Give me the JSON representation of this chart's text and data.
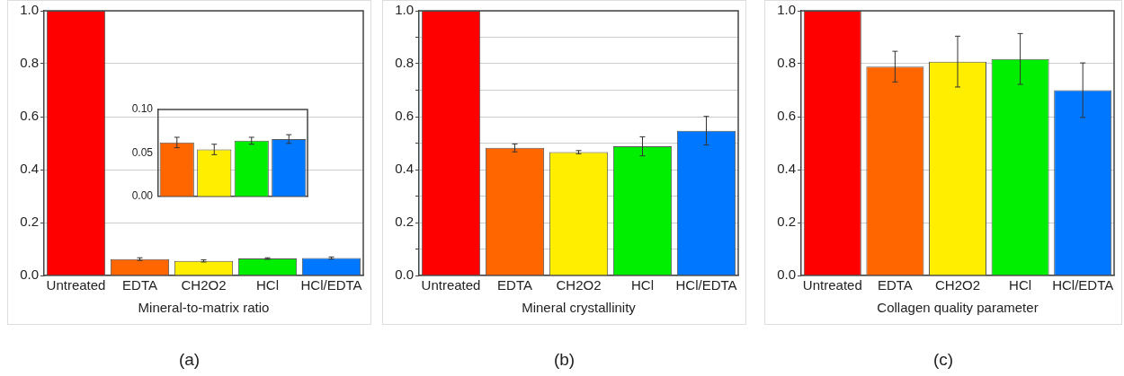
{
  "chart_data": [
    {
      "type": "bar",
      "xlabel": "Mineral-to-matrix ratio",
      "categories": [
        "Untreated",
        "EDTA",
        "CH2O2",
        "HCl",
        "HCl/EDTA"
      ],
      "values": [
        1.0,
        0.062,
        0.055,
        0.064,
        0.066
      ],
      "errors": [
        null,
        0.005,
        0.004,
        0.003,
        0.004
      ],
      "colors": [
        "#ff0000",
        "#ff6600",
        "#ffee00",
        "#00ee00",
        "#0077ff"
      ],
      "ylim": [
        0,
        1
      ],
      "yticks": [
        {
          "value": 0,
          "label": "0.0"
        },
        0.2,
        0.4,
        0.6,
        0.8,
        {
          "value": 1,
          "label": "1.0"
        }
      ],
      "grid": "y",
      "annotations": [
        "(a)"
      ]
    },
    {
      "type": "bar",
      "categories": [
        null,
        null,
        null,
        null
      ],
      "values": [
        0.062,
        0.054,
        0.064,
        0.066
      ],
      "errors": [
        0.006,
        0.006,
        0.004,
        0.005
      ],
      "colors": [
        "#ff6600",
        "#ffee00",
        "#00ee00",
        "#0077ff"
      ],
      "ylim": [
        0,
        0.1
      ],
      "yticks": [
        {
          "value": 0,
          "label": "0.00"
        },
        0.05,
        {
          "value": 0.1,
          "label": "0.10"
        }
      ],
      "tick_labels": "y"
    },
    {
      "type": "bar",
      "xlabel": "Mineral crystallinity",
      "categories": [
        "Untreated",
        "EDTA",
        "CH2O2",
        "HCl",
        "HCl/EDTA"
      ],
      "values": [
        1.0,
        0.482,
        0.466,
        0.488,
        0.547
      ],
      "errors": [
        null,
        0.015,
        0.006,
        0.036,
        0.054
      ],
      "colors": [
        "#ff0000",
        "#ff6600",
        "#ffee00",
        "#00ee00",
        "#0077ff"
      ],
      "ylim": [
        0,
        1
      ],
      "yticks": [
        {
          "value": 0,
          "label": "0.0"
        },
        {
          "value": 0.1,
          "label": null
        },
        0.2,
        {
          "value": 0.3,
          "label": null
        },
        0.4,
        {
          "value": 0.5,
          "label": null
        },
        0.6,
        {
          "value": 0.7,
          "label": null
        },
        0.8,
        {
          "value": 0.9,
          "label": null
        },
        {
          "value": 1,
          "label": "1.0"
        }
      ],
      "grid": "y",
      "annotations": [
        "(b)"
      ]
    },
    {
      "type": "bar",
      "xlabel": "Collagen quality parameter",
      "categories": [
        "Untreated",
        "EDTA",
        "CH2O2",
        "HCl",
        "HCl/EDTA"
      ],
      "values": [
        1.0,
        0.789,
        0.808,
        0.818,
        0.7
      ],
      "errors": [
        null,
        0.058,
        0.096,
        0.096,
        0.103
      ],
      "colors": [
        "#ff0000",
        "#ff6600",
        "#ffee00",
        "#00ee00",
        "#0077ff"
      ],
      "ylim": [
        0,
        1
      ],
      "yticks": [
        {
          "value": 0,
          "label": "0.0"
        },
        0.2,
        0.4,
        0.6,
        0.8,
        {
          "value": 1,
          "label": "1.0"
        }
      ],
      "grid": "y",
      "annotations": [
        "(c)"
      ]
    }
  ]
}
